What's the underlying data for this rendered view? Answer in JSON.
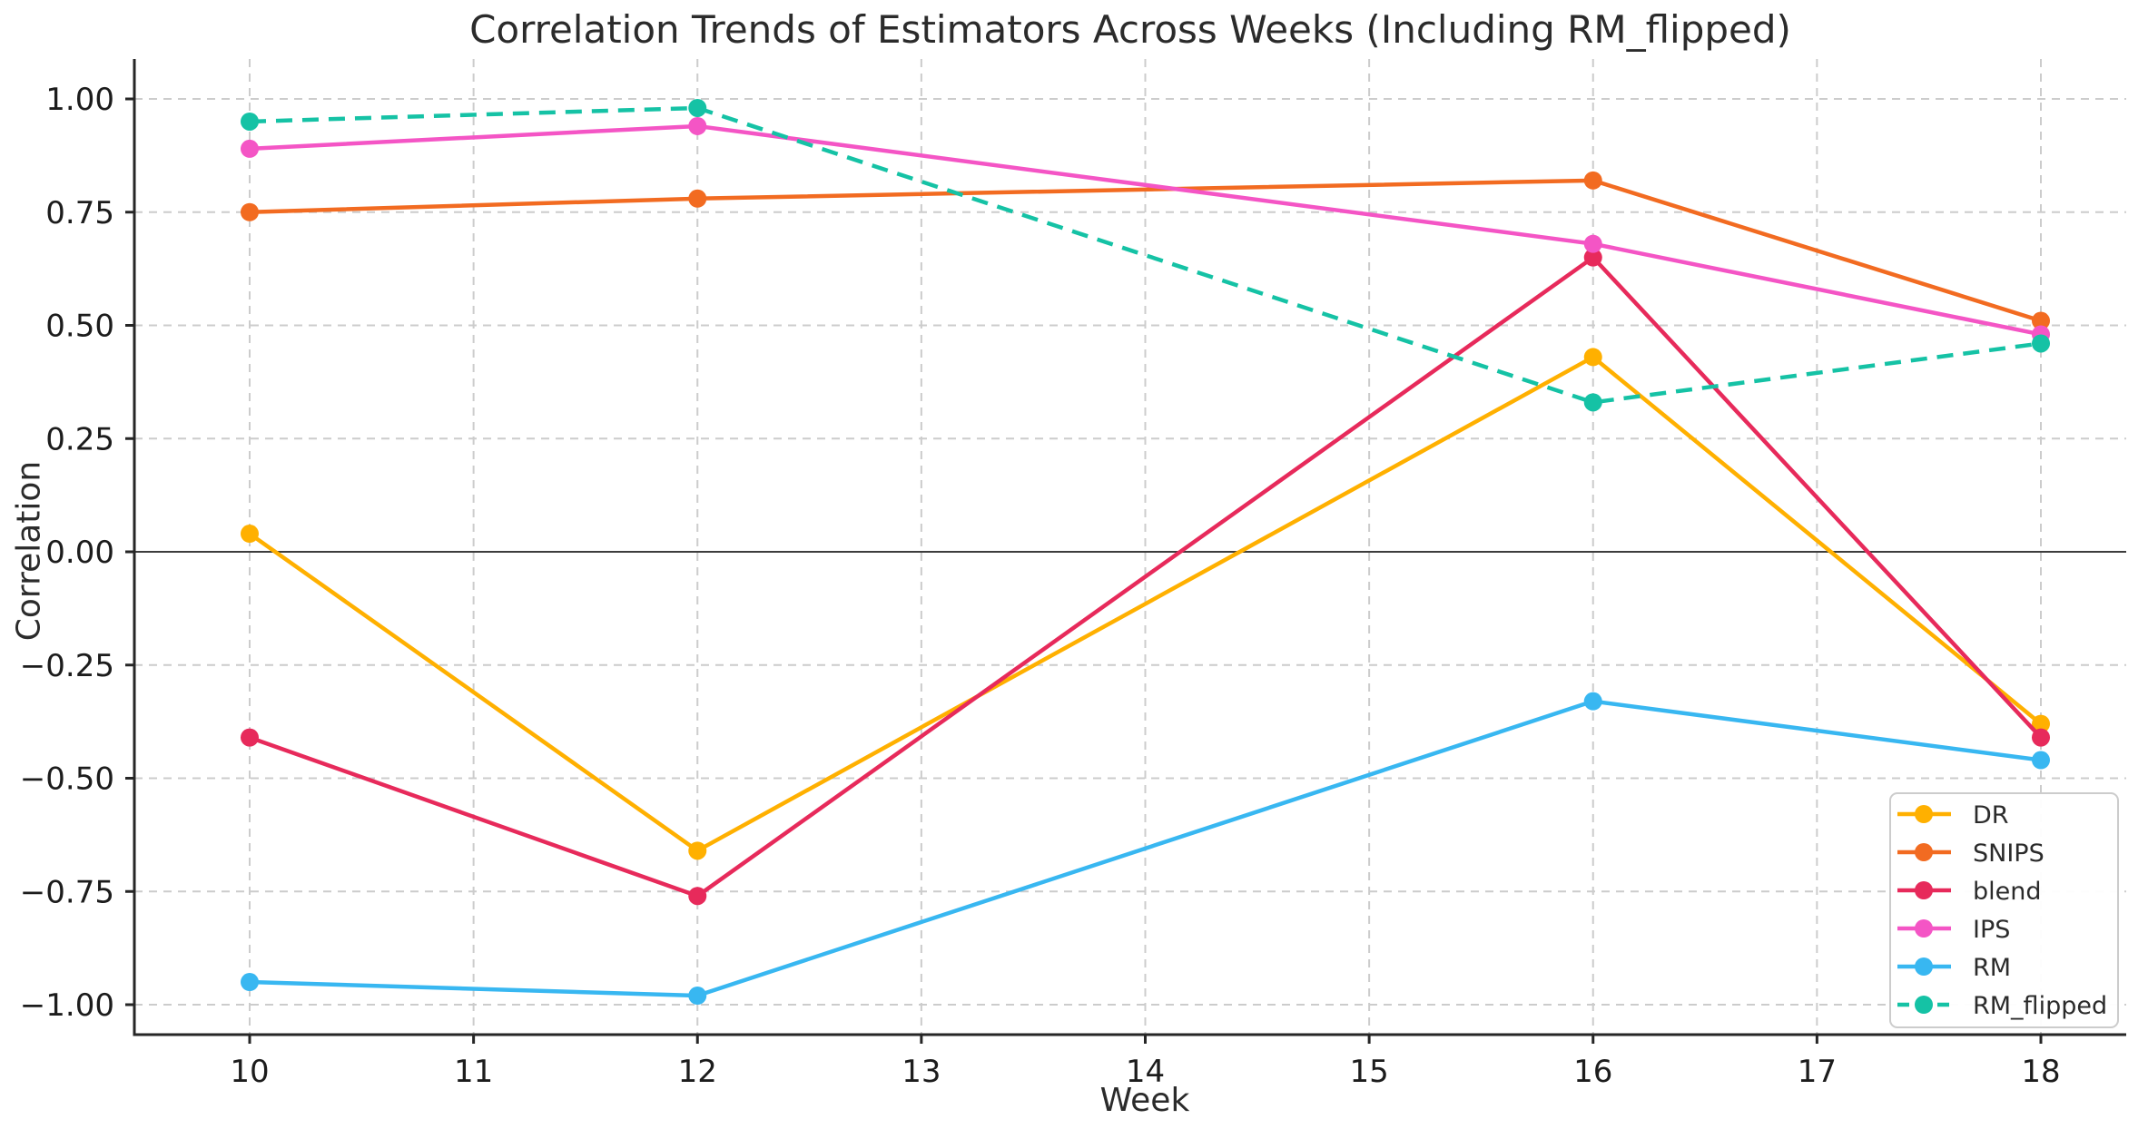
{
  "chart_data": {
    "type": "line",
    "title": "Correlation Trends of Estimators Across Weeks (Including RM_flipped)",
    "xlabel": "Week",
    "ylabel": "Correlation",
    "x": [
      10,
      12,
      16,
      18
    ],
    "x_ticks": [
      10,
      11,
      12,
      13,
      14,
      15,
      16,
      17,
      18
    ],
    "y_ticks": [
      1.0,
      0.75,
      0.5,
      0.25,
      0.0,
      -0.25,
      -0.5,
      -0.75,
      -1.0
    ],
    "y_tick_labels": [
      "1.00",
      "0.75",
      "0.50",
      "0.25",
      "0.00",
      "−0.25",
      "−0.50",
      "−0.75",
      "−1.00"
    ],
    "xlim": [
      9.48,
      18.38
    ],
    "ylim": [
      -1.07,
      1.09
    ],
    "grid": true,
    "grid_style": "dashed",
    "zero_line": true,
    "legend_position": "lower right",
    "series": [
      {
        "name": "DR",
        "color": "#FFB000",
        "style": "solid",
        "marker": "circle",
        "values": [
          0.04,
          -0.66,
          0.43,
          -0.38
        ]
      },
      {
        "name": "SNIPS",
        "color": "#F26B21",
        "style": "solid",
        "marker": "circle",
        "values": [
          0.75,
          0.78,
          0.82,
          0.51
        ]
      },
      {
        "name": "blend",
        "color": "#E72A5B",
        "style": "solid",
        "marker": "circle",
        "values": [
          -0.41,
          -0.76,
          0.65,
          -0.41
        ]
      },
      {
        "name": "IPS",
        "color": "#F455C5",
        "style": "solid",
        "marker": "circle",
        "values": [
          0.89,
          0.94,
          0.68,
          0.48
        ]
      },
      {
        "name": "RM",
        "color": "#38B7F1",
        "style": "solid",
        "marker": "circle",
        "values": [
          -0.95,
          -0.98,
          -0.33,
          -0.46
        ]
      },
      {
        "name": "RM_flipped",
        "color": "#15C2A5",
        "style": "dashed",
        "marker": "circle",
        "values": [
          0.95,
          0.98,
          0.33,
          0.46
        ]
      }
    ],
    "colors": {
      "grid": "#cccccc",
      "zero_line": "#3d3d3d",
      "axis": "#262626",
      "tick_text": "#1c1c1c",
      "legend_border": "#cccccc",
      "background": "#ffffff"
    }
  }
}
